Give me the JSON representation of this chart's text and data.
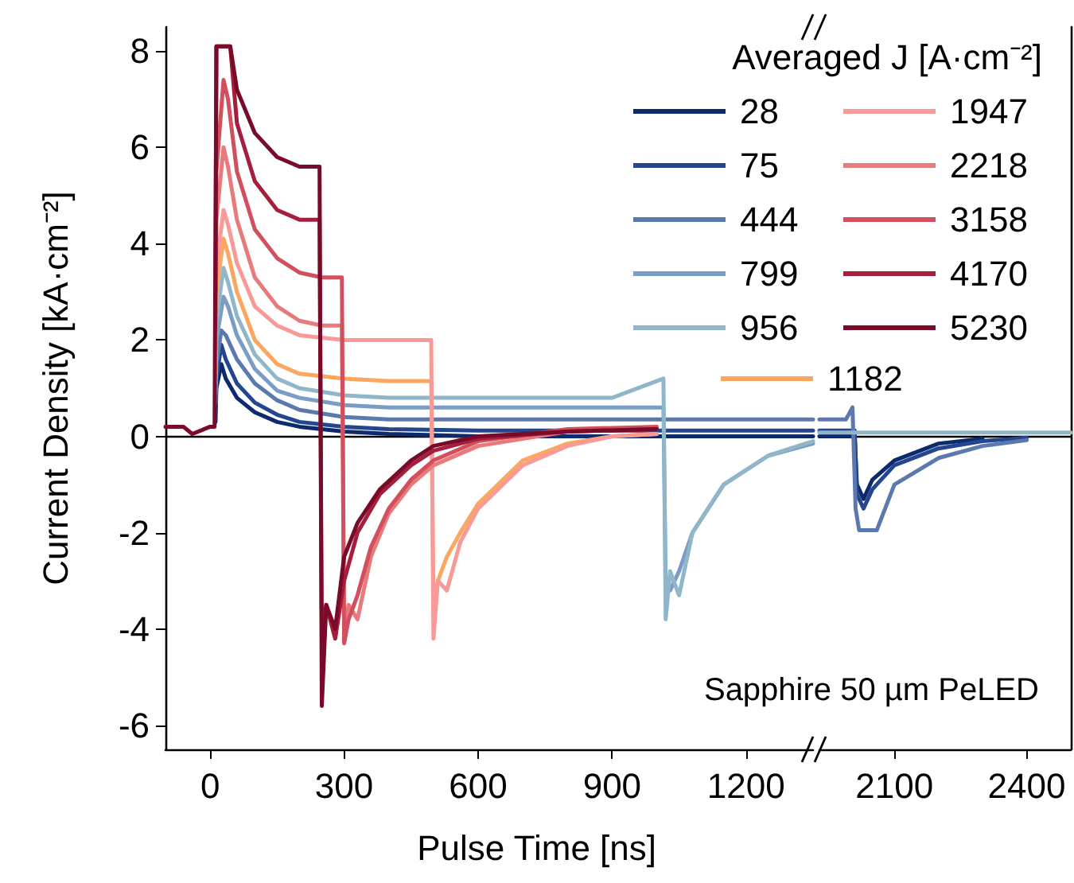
{
  "chart_data": [
    {
      "type": "line",
      "xlabel": "Pulse Time [ns]",
      "ylabel": "Current Density [kA·cm⁻²]",
      "legend_title": "Averaged J [A·cm⁻²]",
      "legend": "top right",
      "annotations": [
        "Sapphire 50 µm PeLED"
      ],
      "xlim": [
        -100,
        1350
      ],
      "xticks": [
        0,
        300,
        600,
        900,
        1200
      ],
      "ylim": [
        -6.5,
        8.5
      ],
      "yticks": [
        -6,
        -4,
        -2,
        0,
        2,
        4,
        6,
        8
      ],
      "series": [
        {
          "name": "28",
          "color": "#0d2a6e",
          "x": [
            12,
            14,
            25,
            35,
            60,
            100,
            150,
            200,
            300,
            400,
            600,
            900,
            1200,
            1350
          ],
          "values": [
            0.3,
            1.0,
            1.5,
            1.2,
            0.8,
            0.5,
            0.3,
            0.2,
            0.1,
            0.05,
            0.0,
            0.0,
            0.0,
            0.0
          ]
        },
        {
          "name": "75",
          "color": "#24468f",
          "x": [
            12,
            14,
            25,
            35,
            60,
            100,
            150,
            200,
            300,
            400,
            600,
            900,
            1200,
            1350
          ],
          "values": [
            0.5,
            1.2,
            1.9,
            1.6,
            1.1,
            0.7,
            0.45,
            0.3,
            0.2,
            0.15,
            0.12,
            0.12,
            0.12,
            0.12
          ]
        },
        {
          "name": "444",
          "color": "#5b79ae",
          "x": [
            12,
            14,
            25,
            35,
            60,
            100,
            150,
            200,
            300,
            400,
            600,
            900,
            1200,
            1350
          ],
          "values": [
            0.7,
            1.5,
            2.2,
            2.1,
            1.6,
            1.1,
            0.75,
            0.55,
            0.4,
            0.35,
            0.35,
            0.35,
            0.35,
            0.35
          ]
        },
        {
          "name": "799",
          "color": "#7a9cc6",
          "x": [
            12,
            14,
            30,
            40,
            60,
            100,
            150,
            200,
            300,
            400,
            600,
            900,
            1015,
            1020,
            1030,
            1050,
            1080,
            1150,
            1250,
            1350
          ],
          "values": [
            0.9,
            2.0,
            2.9,
            2.7,
            2.1,
            1.4,
            0.95,
            0.8,
            0.65,
            0.6,
            0.6,
            0.6,
            0.6,
            -3.0,
            -3.2,
            -2.8,
            -2.0,
            -1.0,
            -0.4,
            -0.15
          ]
        },
        {
          "name": "956",
          "color": "#8fb7c9",
          "x": [
            12,
            14,
            30,
            40,
            60,
            100,
            150,
            200,
            300,
            400,
            600,
            900,
            1015,
            1020,
            1030,
            1050,
            1080,
            1150,
            1250,
            1350
          ],
          "values": [
            1.1,
            2.4,
            3.5,
            3.2,
            2.5,
            1.7,
            1.2,
            1.0,
            0.85,
            0.8,
            0.8,
            0.8,
            1.2,
            -3.8,
            -2.8,
            -3.3,
            -2.0,
            -1.0,
            -0.4,
            -0.1
          ]
        },
        {
          "name": "1182",
          "color": "#fca660",
          "x": [
            12,
            14,
            30,
            40,
            60,
            100,
            150,
            200,
            300,
            400,
            495,
            500,
            510,
            530,
            560,
            600,
            700,
            800,
            900,
            1000
          ],
          "values": [
            1.3,
            3.0,
            4.1,
            3.8,
            3.0,
            2.0,
            1.5,
            1.3,
            1.2,
            1.15,
            1.15,
            -3.5,
            -3.0,
            -2.5,
            -2.0,
            -1.4,
            -0.5,
            -0.15,
            0,
            0.05
          ]
        },
        {
          "name": "1947",
          "color": "#f79a98",
          "x": [
            12,
            14,
            30,
            40,
            60,
            100,
            150,
            200,
            300,
            400,
            495,
            500,
            510,
            530,
            560,
            600,
            700,
            800,
            900,
            1000
          ],
          "values": [
            1.5,
            3.5,
            4.7,
            4.4,
            3.6,
            2.7,
            2.3,
            2.1,
            2.0,
            2.0,
            2.0,
            -4.2,
            -3.0,
            -3.2,
            -2.2,
            -1.5,
            -0.6,
            -0.2,
            0.0,
            0.05
          ]
        },
        {
          "name": "2218",
          "color": "#e87a7c",
          "x": [
            12,
            14,
            30,
            40,
            60,
            100,
            150,
            200,
            250,
            295,
            300,
            310,
            330,
            360,
            400,
            450,
            500,
            600,
            800,
            1000
          ],
          "values": [
            1.8,
            4.5,
            6.0,
            5.6,
            4.5,
            3.3,
            2.7,
            2.4,
            2.3,
            2.3,
            -4.0,
            -3.5,
            -3.8,
            -2.5,
            -1.6,
            -1.0,
            -0.6,
            -0.2,
            0.1,
            0.15
          ]
        },
        {
          "name": "3158",
          "color": "#d2505e",
          "x": [
            12,
            14,
            30,
            40,
            60,
            100,
            150,
            200,
            250,
            295,
            300,
            310,
            330,
            360,
            400,
            450,
            500,
            600,
            800,
            1000
          ],
          "values": [
            2.2,
            5.5,
            7.4,
            7.0,
            5.5,
            4.3,
            3.7,
            3.4,
            3.3,
            3.3,
            -4.3,
            -3.8,
            -3.3,
            -2.3,
            -1.5,
            -0.9,
            -0.5,
            -0.1,
            0.15,
            0.2
          ]
        },
        {
          "name": "4170",
          "color": "#a51e3c",
          "x": [
            12,
            14,
            45,
            60,
            100,
            150,
            200,
            245,
            250,
            260,
            280,
            300,
            330,
            380,
            450,
            500,
            600,
            800,
            1000
          ],
          "values": [
            3.0,
            8.1,
            8.1,
            6.5,
            5.3,
            4.7,
            4.5,
            4.5,
            -4.0,
            -3.5,
            -4.2,
            -3.0,
            -2.0,
            -1.2,
            -0.6,
            -0.3,
            -0.05,
            0.1,
            0.15
          ]
        },
        {
          "name": "5230",
          "color": "#7a0a2a",
          "x": [
            -100,
            -60,
            -40,
            0,
            10,
            14,
            45,
            60,
            100,
            150,
            200,
            245,
            250,
            260,
            280,
            300,
            330,
            380,
            450,
            500,
            600,
            800,
            1000
          ],
          "values": [
            0.2,
            0.2,
            0.05,
            0.2,
            0.2,
            8.1,
            8.1,
            7.2,
            6.3,
            5.8,
            5.6,
            5.6,
            -5.6,
            -3.5,
            -4.0,
            -2.5,
            -1.8,
            -1.1,
            -0.5,
            -0.2,
            0.0,
            0.1,
            0.15
          ]
        }
      ]
    },
    {
      "type": "line",
      "tick_labels": "x",
      "xlim": [
        1930,
        2500
      ],
      "xticks": [
        2100,
        2400
      ],
      "ylim": [
        -6.5,
        8.5
      ],
      "series": [
        {
          "color": "#0d2a6e",
          "x": [
            1930,
            2000,
            2010,
            2015,
            2030,
            2050,
            2100,
            2200,
            2300
          ],
          "values": [
            0.0,
            0.0,
            0.0,
            -1.0,
            -1.3,
            -0.9,
            -0.5,
            -0.15,
            -0.05
          ]
        },
        {
          "color": "#24468f",
          "x": [
            1930,
            2000,
            2010,
            2015,
            2030,
            2050,
            2100,
            2200,
            2300,
            2400
          ],
          "values": [
            0.12,
            0.12,
            0.12,
            -1.2,
            -1.5,
            -1.1,
            -0.6,
            -0.25,
            -0.1,
            -0.03
          ]
        },
        {
          "color": "#5b79ae",
          "x": [
            1930,
            1990,
            2005,
            2012,
            2020,
            2060,
            2100,
            2200,
            2300,
            2400
          ],
          "values": [
            0.35,
            0.35,
            0.6,
            -1.5,
            -1.95,
            -1.95,
            -1.0,
            -0.45,
            -0.2,
            -0.08
          ]
        },
        {
          "color": "#8fb7c9",
          "x": [
            1930,
            2500
          ],
          "values": [
            0.08,
            0.08
          ]
        }
      ]
    }
  ]
}
